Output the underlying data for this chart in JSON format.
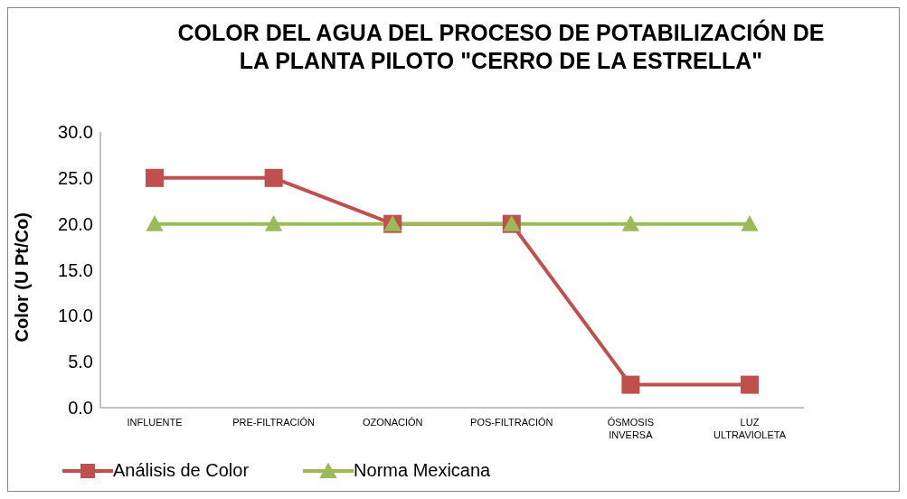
{
  "chart_data": {
    "type": "line",
    "title": "COLOR DEL AGUA DEL PROCESO DE POTABILIZACIÓN DE LA PLANTA PILOTO \"CERRO DE LA ESTRELLA\"",
    "ylabel": "Color (U Pt/Co)",
    "categories": [
      "INFLUENTE",
      "PRE-FILTRACIÓN",
      "OZONACIÓN",
      "POS-FILTRACIÓN",
      "ÓSMOSIS INVERSA",
      "LUZ ULTRAVIOLETA"
    ],
    "series": [
      {
        "name": "Análisis de Color",
        "color": "#c0504d",
        "marker": "square",
        "values": [
          25,
          25,
          20,
          20,
          2.5,
          2.5
        ]
      },
      {
        "name": "Norma Mexicana",
        "color": "#9bbb59",
        "marker": "triangle",
        "values": [
          20,
          20,
          20,
          20,
          20,
          20
        ]
      }
    ],
    "ylim": [
      0,
      30
    ],
    "yticks": [
      {
        "value": 0,
        "label": "0.0"
      },
      {
        "value": 5,
        "label": "5.0"
      },
      {
        "value": 10,
        "label": "10.0"
      },
      {
        "value": 15,
        "label": "15.0"
      },
      {
        "value": 20,
        "label": "20.0"
      },
      {
        "value": 25,
        "label": "25.0"
      },
      {
        "value": 30,
        "label": "30.0"
      }
    ],
    "legend": "bottom left",
    "grid": false,
    "line_style": "solid"
  }
}
